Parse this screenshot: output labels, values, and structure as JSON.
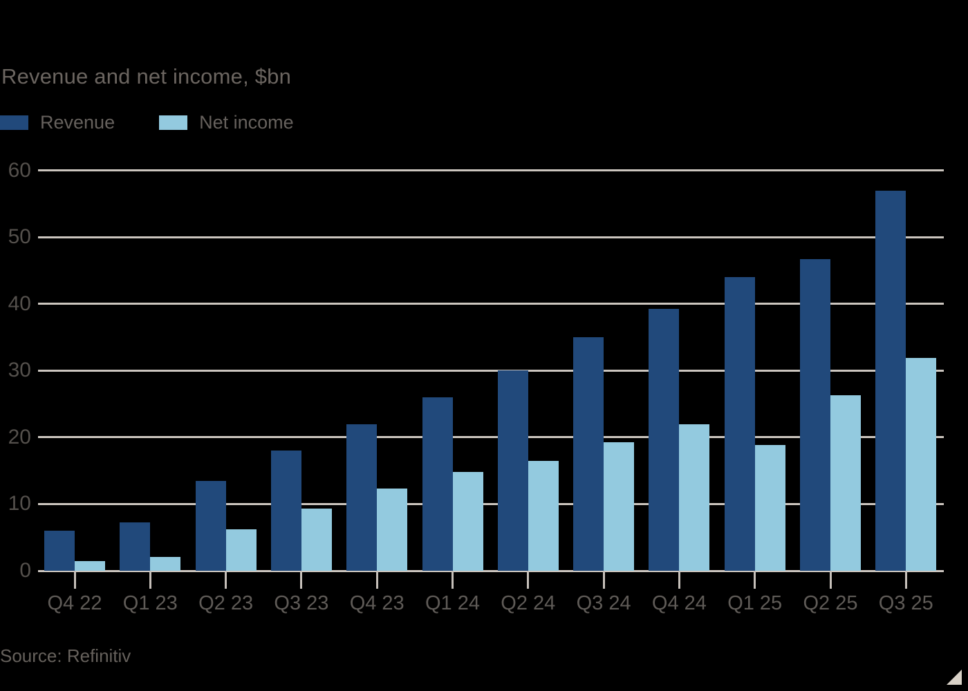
{
  "title": "Revenue and net income, $bn",
  "source": "Source: Refinitiv",
  "legend": {
    "items": [
      {
        "label": "Revenue",
        "color": "#21497b"
      },
      {
        "label": "Net income",
        "color": "#93cadf"
      }
    ]
  },
  "colors": {
    "background": "#000000",
    "revenue_bar": "#21497b",
    "net_income_bar": "#93cadf",
    "gridline": "#ccc6bf",
    "title_text": "#6b6560",
    "axis_text": "#54504c",
    "corner_triangle": "#d9d2c8"
  },
  "chart_data": {
    "type": "bar",
    "title": "Revenue and net income, $bn",
    "categories": [
      "Q4 22",
      "Q1 23",
      "Q2 23",
      "Q3 23",
      "Q4 23",
      "Q1 24",
      "Q2 24",
      "Q3 24",
      "Q4 24",
      "Q1 25",
      "Q2 25",
      "Q3 25"
    ],
    "series": [
      {
        "name": "Revenue",
        "color": "#21497b",
        "values": [
          6.0,
          7.2,
          13.5,
          18.0,
          22.0,
          26.0,
          30.0,
          35.0,
          39.3,
          44.0,
          46.7,
          57.0
        ]
      },
      {
        "name": "Net income",
        "color": "#93cadf",
        "values": [
          1.4,
          2.1,
          6.2,
          9.3,
          12.3,
          14.8,
          16.5,
          19.3,
          22.0,
          18.8,
          26.3,
          31.9
        ]
      }
    ],
    "xlabel": "",
    "ylabel": "",
    "ylim": [
      0,
      60
    ],
    "yticks": [
      0,
      10,
      20,
      30,
      40,
      50,
      60
    ],
    "grid": "horizontal",
    "legend_position": "top-left"
  }
}
